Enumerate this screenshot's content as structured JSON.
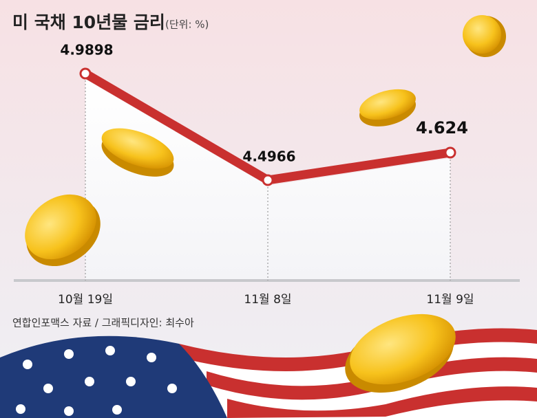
{
  "chart_data": {
    "type": "line",
    "title": "미 국채 10년물 금리",
    "unit_note": "(단위: %)",
    "categories": [
      "10월 19일",
      "11월 8일",
      "11월 9일"
    ],
    "values": [
      4.9898,
      4.4966,
      4.624
    ],
    "color": "#c9302f",
    "source": "연합인포맥스 자료 / 그래픽디자인: 최수아"
  }
}
